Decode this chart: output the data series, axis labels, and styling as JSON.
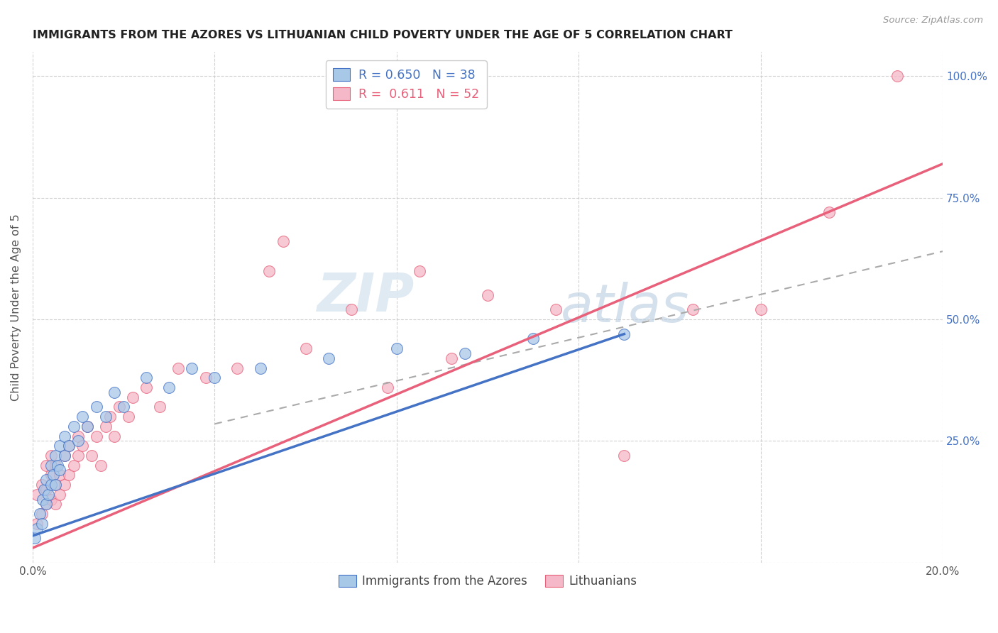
{
  "title": "IMMIGRANTS FROM THE AZORES VS LITHUANIAN CHILD POVERTY UNDER THE AGE OF 5 CORRELATION CHART",
  "source": "Source: ZipAtlas.com",
  "ylabel": "Child Poverty Under the Age of 5",
  "xlim": [
    0.0,
    0.2
  ],
  "ylim": [
    0.0,
    1.05
  ],
  "color_blue": "#a8c8e8",
  "color_pink": "#f4b8c8",
  "color_blue_dark": "#4472c4",
  "color_pink_dark": "#e8607a",
  "color_blue_line": "#4472c4",
  "color_pink_line": "#e8607a",
  "color_dashed": "#aaaaaa",
  "watermark_zip": "ZIP",
  "watermark_atlas": "atlas",
  "background_color": "#ffffff",
  "grid_color": "#cccccc",
  "azores_x": [
    0.0005,
    0.001,
    0.0015,
    0.002,
    0.0022,
    0.0025,
    0.003,
    0.003,
    0.0035,
    0.004,
    0.004,
    0.0045,
    0.005,
    0.005,
    0.0055,
    0.006,
    0.006,
    0.007,
    0.007,
    0.008,
    0.009,
    0.01,
    0.011,
    0.012,
    0.014,
    0.016,
    0.018,
    0.02,
    0.025,
    0.03,
    0.035,
    0.04,
    0.05,
    0.065,
    0.08,
    0.095,
    0.11,
    0.13
  ],
  "azores_y": [
    0.05,
    0.07,
    0.1,
    0.08,
    0.13,
    0.15,
    0.12,
    0.17,
    0.14,
    0.16,
    0.2,
    0.18,
    0.22,
    0.16,
    0.2,
    0.24,
    0.19,
    0.22,
    0.26,
    0.24,
    0.28,
    0.25,
    0.3,
    0.28,
    0.32,
    0.3,
    0.35,
    0.32,
    0.38,
    0.36,
    0.4,
    0.38,
    0.4,
    0.42,
    0.44,
    0.43,
    0.46,
    0.47
  ],
  "lithuanian_x": [
    0.001,
    0.001,
    0.002,
    0.002,
    0.003,
    0.003,
    0.003,
    0.004,
    0.004,
    0.004,
    0.005,
    0.005,
    0.005,
    0.006,
    0.006,
    0.007,
    0.007,
    0.008,
    0.008,
    0.009,
    0.01,
    0.01,
    0.011,
    0.012,
    0.013,
    0.014,
    0.015,
    0.016,
    0.017,
    0.018,
    0.019,
    0.021,
    0.022,
    0.025,
    0.028,
    0.032,
    0.038,
    0.045,
    0.052,
    0.055,
    0.06,
    0.07,
    0.078,
    0.085,
    0.092,
    0.1,
    0.115,
    0.13,
    0.145,
    0.16,
    0.175,
    0.19
  ],
  "lithuanian_y": [
    0.08,
    0.14,
    0.1,
    0.16,
    0.12,
    0.15,
    0.2,
    0.13,
    0.18,
    0.22,
    0.12,
    0.16,
    0.2,
    0.14,
    0.18,
    0.16,
    0.22,
    0.18,
    0.24,
    0.2,
    0.22,
    0.26,
    0.24,
    0.28,
    0.22,
    0.26,
    0.2,
    0.28,
    0.3,
    0.26,
    0.32,
    0.3,
    0.34,
    0.36,
    0.32,
    0.4,
    0.38,
    0.4,
    0.6,
    0.66,
    0.44,
    0.52,
    0.36,
    0.6,
    0.42,
    0.55,
    0.52,
    0.22,
    0.52,
    0.52,
    0.72,
    1.0
  ],
  "blue_line_x": [
    0.0,
    0.13
  ],
  "blue_line_y": [
    0.055,
    0.47
  ],
  "pink_line_x": [
    0.0,
    0.2
  ],
  "pink_line_y": [
    0.03,
    0.82
  ],
  "dash_line_x": [
    0.04,
    0.2
  ],
  "dash_line_y": [
    0.285,
    0.64
  ]
}
